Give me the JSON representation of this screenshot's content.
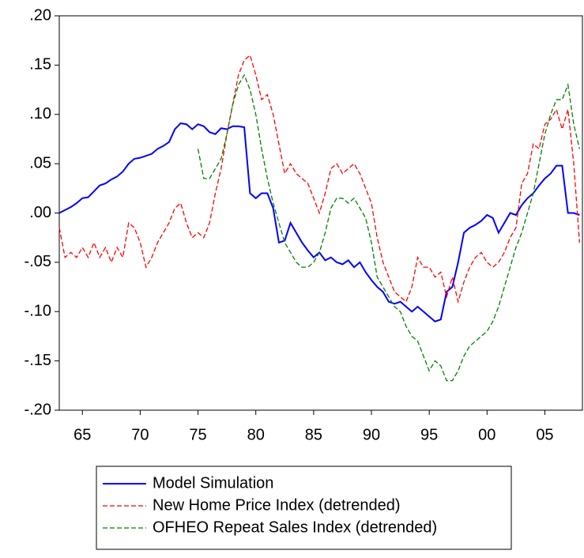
{
  "chart_data": {
    "type": "line",
    "x": [
      1963,
      1963.5,
      1964,
      1964.5,
      1965,
      1965.5,
      1966,
      1966.5,
      1967,
      1967.5,
      1968,
      1968.5,
      1969,
      1969.5,
      1970,
      1970.5,
      1971,
      1971.5,
      1972,
      1972.5,
      1973,
      1973.5,
      1974,
      1974.5,
      1975,
      1975.5,
      1976,
      1976.5,
      1977,
      1977.5,
      1978,
      1978.5,
      1979,
      1979.5,
      1980,
      1980.5,
      1981,
      1981.5,
      1982,
      1982.5,
      1983,
      1983.5,
      1984,
      1984.5,
      1985,
      1985.5,
      1986,
      1986.5,
      1987,
      1987.5,
      1988,
      1988.5,
      1989,
      1989.5,
      1990,
      1990.5,
      1991,
      1991.5,
      1992,
      1992.5,
      1993,
      1993.5,
      1994,
      1994.5,
      1995,
      1995.5,
      1996,
      1996.5,
      1997,
      1997.5,
      1998,
      1998.5,
      1999,
      1999.5,
      2000,
      2000.5,
      2001,
      2001.5,
      2002,
      2002.5,
      2003,
      2003.5,
      2004,
      2004.5,
      2005,
      2005.5,
      2006,
      2006.5,
      2007,
      2007.5,
      2008
    ],
    "series": [
      {
        "name": "Model Simulation",
        "color": "#0000ff",
        "line_style": "solid",
        "values": [
          0.0,
          0.003,
          0.006,
          0.01,
          0.015,
          0.016,
          0.022,
          0.028,
          0.03,
          0.034,
          0.037,
          0.042,
          0.05,
          0.055,
          0.056,
          0.058,
          0.06,
          0.065,
          0.068,
          0.072,
          0.085,
          0.091,
          0.09,
          0.085,
          0.09,
          0.088,
          0.082,
          0.08,
          0.086,
          0.085,
          0.088,
          0.088,
          0.087,
          0.02,
          0.015,
          0.02,
          0.02,
          0.005,
          -0.03,
          -0.028,
          -0.01,
          -0.02,
          -0.03,
          -0.038,
          -0.045,
          -0.04,
          -0.048,
          -0.045,
          -0.05,
          -0.052,
          -0.048,
          -0.055,
          -0.05,
          -0.06,
          -0.068,
          -0.075,
          -0.08,
          -0.09,
          -0.092,
          -0.09,
          -0.095,
          -0.1,
          -0.095,
          -0.1,
          -0.105,
          -0.11,
          -0.108,
          -0.08,
          -0.075,
          -0.05,
          -0.02,
          -0.015,
          -0.012,
          -0.008,
          -0.002,
          -0.005,
          -0.02,
          -0.01,
          0.0,
          -0.002,
          0.008,
          0.015,
          0.02,
          0.028,
          0.035,
          0.04,
          0.048,
          0.048,
          0.0,
          0.0,
          -0.002
        ]
      },
      {
        "name": "New Home Price Index (detrended)",
        "color": "#ff0000",
        "line_style": "dashed",
        "values": [
          -0.015,
          -0.045,
          -0.04,
          -0.045,
          -0.035,
          -0.045,
          -0.03,
          -0.045,
          -0.035,
          -0.05,
          -0.035,
          -0.045,
          -0.01,
          -0.015,
          -0.03,
          -0.055,
          -0.045,
          -0.03,
          -0.02,
          -0.01,
          0.005,
          0.01,
          -0.01,
          -0.025,
          -0.02,
          -0.025,
          -0.01,
          0.02,
          0.045,
          0.08,
          0.11,
          0.14,
          0.155,
          0.16,
          0.14,
          0.115,
          0.12,
          0.1,
          0.07,
          0.04,
          0.05,
          0.04,
          0.035,
          0.03,
          0.015,
          0.0,
          0.02,
          0.045,
          0.05,
          0.04,
          0.045,
          0.05,
          0.04,
          0.025,
          0.01,
          -0.025,
          -0.05,
          -0.065,
          -0.08,
          -0.085,
          -0.09,
          -0.075,
          -0.045,
          -0.055,
          -0.055,
          -0.065,
          -0.06,
          -0.085,
          -0.065,
          -0.09,
          -0.07,
          -0.055,
          -0.045,
          -0.04,
          -0.05,
          -0.055,
          -0.05,
          -0.04,
          -0.025,
          -0.015,
          0.03,
          0.04,
          0.07,
          0.065,
          0.09,
          0.095,
          0.105,
          0.085,
          0.105,
          0.05,
          -0.03
        ]
      },
      {
        "name": "OFHEO Repeat Sales Index (detrended)",
        "color": "#008000",
        "line_style": "dashed",
        "values": [
          null,
          null,
          null,
          null,
          null,
          null,
          null,
          null,
          null,
          null,
          null,
          null,
          null,
          null,
          null,
          null,
          null,
          null,
          null,
          null,
          null,
          null,
          null,
          null,
          0.065,
          0.035,
          0.035,
          0.045,
          0.055,
          0.08,
          0.11,
          0.13,
          0.14,
          0.125,
          0.1,
          0.065,
          0.035,
          0.01,
          -0.01,
          -0.03,
          -0.04,
          -0.05,
          -0.055,
          -0.055,
          -0.05,
          -0.04,
          -0.02,
          0.005,
          0.015,
          0.015,
          0.01,
          0.015,
          0.005,
          -0.005,
          -0.03,
          -0.065,
          -0.075,
          -0.085,
          -0.095,
          -0.1,
          -0.115,
          -0.125,
          -0.13,
          -0.145,
          -0.16,
          -0.15,
          -0.155,
          -0.17,
          -0.17,
          -0.16,
          -0.145,
          -0.135,
          -0.13,
          -0.125,
          -0.12,
          -0.11,
          -0.095,
          -0.075,
          -0.055,
          -0.035,
          -0.02,
          0.0,
          0.02,
          0.05,
          0.08,
          0.1,
          0.115,
          0.115,
          0.13,
          0.09,
          0.065
        ]
      }
    ],
    "xlim": [
      1963,
      2008.25
    ],
    "ylim": [
      -0.2,
      0.2
    ],
    "xticks": [
      {
        "value": 1965,
        "label": "65"
      },
      {
        "value": 1970,
        "label": "70"
      },
      {
        "value": 1975,
        "label": "75"
      },
      {
        "value": 1980,
        "label": "80"
      },
      {
        "value": 1985,
        "label": "85"
      },
      {
        "value": 1990,
        "label": "90"
      },
      {
        "value": 1995,
        "label": "95"
      },
      {
        "value": 2000,
        "label": "00"
      },
      {
        "value": 2005,
        "label": "05"
      }
    ],
    "yticks": [
      {
        "value": -0.2,
        "label": "-.20"
      },
      {
        "value": -0.15,
        "label": "-.15"
      },
      {
        "value": -0.1,
        "label": "-.10"
      },
      {
        "value": -0.05,
        "label": "-.05"
      },
      {
        "value": 0,
        "label": ".00"
      },
      {
        "value": 0.05,
        "label": ".05"
      },
      {
        "value": 0.1,
        "label": ".10"
      },
      {
        "value": 0.15,
        "label": ".15"
      },
      {
        "value": 0.2,
        "label": ".20"
      }
    ],
    "grid": false,
    "legend": "bottom"
  }
}
